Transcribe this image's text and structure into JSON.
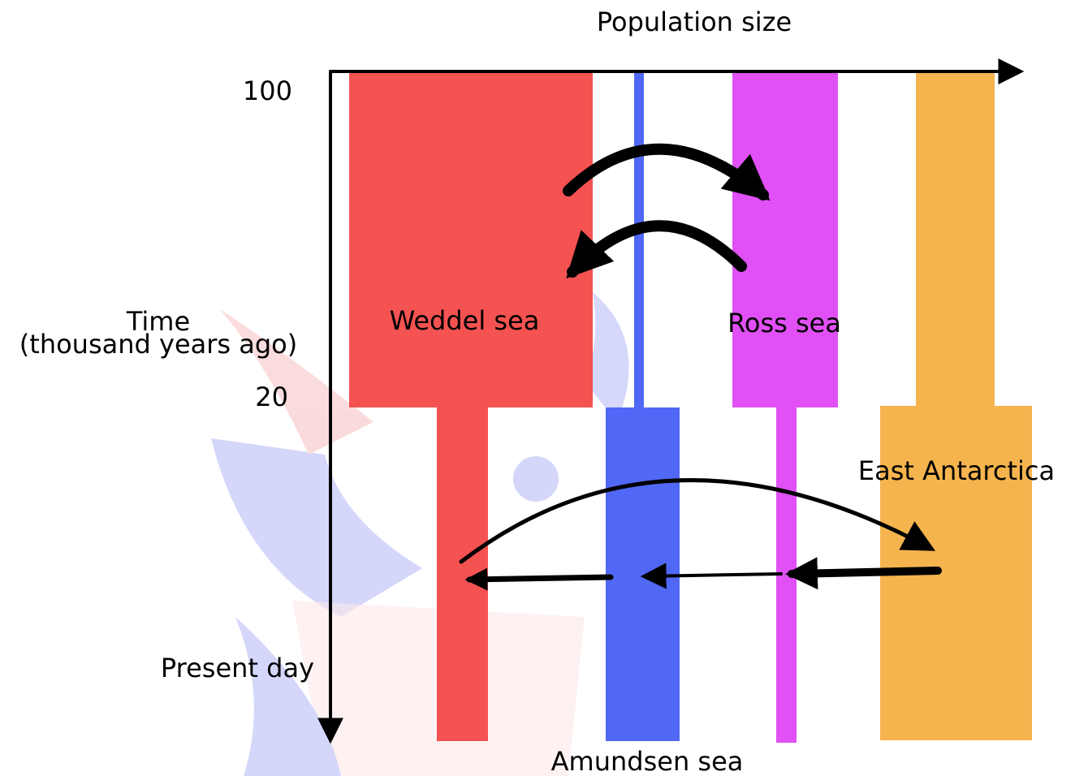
{
  "axes": {
    "x_label": "Population size",
    "y_label": [
      "Time",
      "(thousand years ago)"
    ],
    "time_labels": [
      "100",
      "20",
      "Present day"
    ]
  },
  "populations": [
    {
      "label": "Weddel sea"
    },
    {
      "label": "Amundsen sea"
    },
    {
      "label": "Ross sea"
    },
    {
      "label": "East Antarctica"
    }
  ]
}
